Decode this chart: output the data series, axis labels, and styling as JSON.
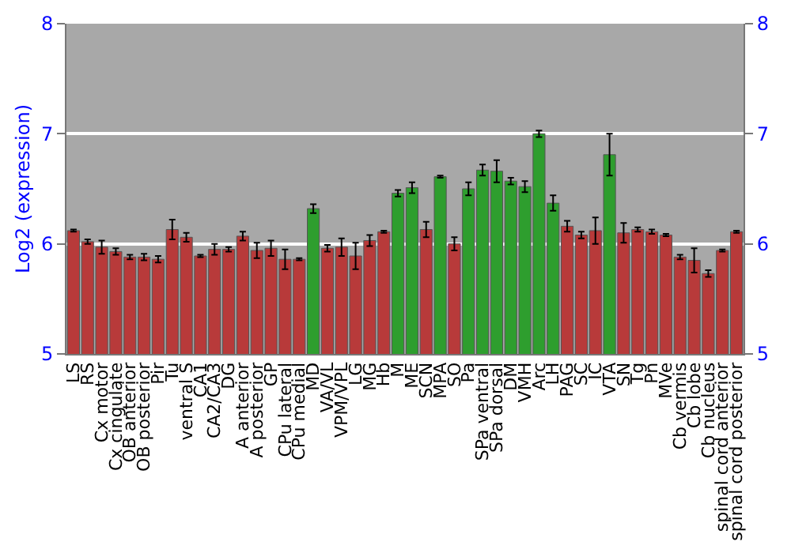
{
  "chart_data": {
    "type": "bar",
    "ylabel": "Log2 (expression)",
    "categories": [
      "LS",
      "RS",
      "Cx motor",
      "Cx cingulate",
      "OB anterior",
      "OB posterior",
      "Pir",
      "Tu",
      "ventral S",
      "CA1",
      "CA2/CA3",
      "DG",
      "A anterior",
      "A posterior",
      "GP",
      "CPu lateral",
      "CPu medial",
      "MD",
      "VA/VL",
      "VPM/VPL",
      "LG",
      "MG",
      "Hb",
      "M",
      "ME",
      "SCN",
      "MPA",
      "SO",
      "Pa",
      "SPa ventral",
      "SPa dorsal",
      "DM",
      "VMH",
      "Arc",
      "LH",
      "PAG",
      "SC",
      "IC",
      "VTA",
      "SN",
      "Tg",
      "Pn",
      "MVe",
      "Cb vermis",
      "Cb lobe",
      "Cb nucleus",
      "spinal cord anterior",
      "spinal cord posterior"
    ],
    "values": [
      6.12,
      6.02,
      5.97,
      5.93,
      5.88,
      5.88,
      5.86,
      6.13,
      6.06,
      5.89,
      5.95,
      5.95,
      6.07,
      5.94,
      5.96,
      5.86,
      5.86,
      6.32,
      5.96,
      5.97,
      5.89,
      6.03,
      6.11,
      6.46,
      6.51,
      6.13,
      6.61,
      6.0,
      6.5,
      6.67,
      6.66,
      6.57,
      6.52,
      7.0,
      6.37,
      6.16,
      6.08,
      6.12,
      6.81,
      6.1,
      6.13,
      6.11,
      6.08,
      5.88,
      5.85,
      5.73,
      5.94,
      6.11
    ],
    "errors": [
      0.01,
      0.02,
      0.06,
      0.03,
      0.02,
      0.03,
      0.03,
      0.09,
      0.04,
      0.01,
      0.05,
      0.02,
      0.04,
      0.07,
      0.07,
      0.09,
      0.01,
      0.04,
      0.03,
      0.08,
      0.12,
      0.05,
      0.01,
      0.03,
      0.05,
      0.07,
      0.01,
      0.06,
      0.06,
      0.05,
      0.1,
      0.03,
      0.05,
      0.03,
      0.07,
      0.05,
      0.03,
      0.12,
      0.19,
      0.09,
      0.02,
      0.02,
      0.01,
      0.02,
      0.11,
      0.03,
      0.01,
      0.01
    ],
    "colors": [
      "#b83a3a",
      "#b83a3a",
      "#b83a3a",
      "#b83a3a",
      "#b83a3a",
      "#b83a3a",
      "#b83a3a",
      "#b83a3a",
      "#b83a3a",
      "#b83a3a",
      "#b83a3a",
      "#b83a3a",
      "#b83a3a",
      "#b83a3a",
      "#b83a3a",
      "#b83a3a",
      "#b83a3a",
      "#2e9e2e",
      "#b83a3a",
      "#b83a3a",
      "#b83a3a",
      "#b83a3a",
      "#b83a3a",
      "#2e9e2e",
      "#2e9e2e",
      "#b83a3a",
      "#2e9e2e",
      "#b83a3a",
      "#2e9e2e",
      "#2e9e2e",
      "#2e9e2e",
      "#2e9e2e",
      "#2e9e2e",
      "#2e9e2e",
      "#2e9e2e",
      "#b83a3a",
      "#b83a3a",
      "#b83a3a",
      "#2e9e2e",
      "#b83a3a",
      "#b83a3a",
      "#b83a3a",
      "#b83a3a",
      "#b83a3a",
      "#b83a3a",
      "#b83a3a",
      "#b83a3a",
      "#b83a3a"
    ],
    "ylim": [
      5,
      8
    ],
    "yticks": [
      5,
      6,
      7,
      8
    ],
    "y2lim": [
      5,
      8
    ],
    "y2ticks": [
      5,
      6,
      7,
      8
    ],
    "grid": "y"
  }
}
